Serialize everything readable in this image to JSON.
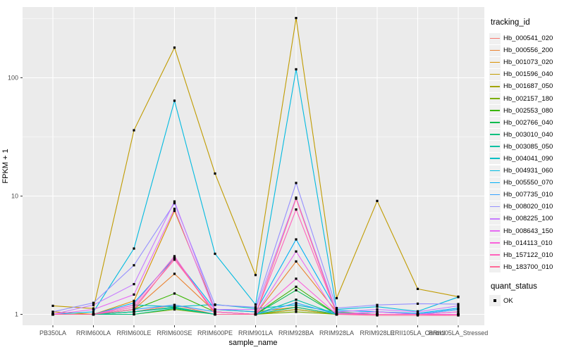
{
  "figure": {
    "panel_bg": "#EBEBEB",
    "grid_color": "#FFFFFF",
    "tick_color": "#333333",
    "axis_text_color": "#4D4D4D",
    "point_color": "#000000"
  },
  "chart_data": {
    "type": "line",
    "title": "",
    "xlabel": "sample_name",
    "ylabel": "FPKM + 1",
    "y_scale": "log10",
    "ylim": [
      0.8,
      400
    ],
    "y_ticks": [
      1,
      10,
      100
    ],
    "y_tick_labels": [
      "1",
      "10",
      "100"
    ],
    "y_minor_breaks": [
      3.162,
      31.62,
      316.2
    ],
    "grid": "on",
    "legend_position": "right",
    "point_shape": "square",
    "categories": [
      "PB350LA",
      "RRIM600LA",
      "RRIM600LE",
      "RRIM600SE",
      "RRIM600PE",
      "RRIM901LA",
      "RRIM928BA",
      "RRIM928LA",
      "RRIM928LE",
      "RRII105LA_Control",
      "RRII105LA_Stressed"
    ],
    "series": [
      {
        "name": "Hb_000541_020",
        "color": "#F8766D",
        "values": [
          1.0,
          1.0,
          1.05,
          1.2,
          1.0,
          1.0,
          1.1,
          1.0,
          1.0,
          1.0,
          1.0
        ]
      },
      {
        "name": "Hb_000556_200",
        "color": "#EA8331",
        "values": [
          1.0,
          1.0,
          1.1,
          2.2,
          1.05,
          1.0,
          2.8,
          1.05,
          1.0,
          1.0,
          1.05
        ]
      },
      {
        "name": "Hb_001073_020",
        "color": "#D89000",
        "values": [
          1.05,
          1.0,
          1.3,
          7.5,
          1.1,
          1.05,
          1.15,
          1.0,
          1.0,
          1.0,
          1.0
        ]
      },
      {
        "name": "Hb_001596_040",
        "color": "#C09B00",
        "values": [
          1.18,
          1.12,
          36.0,
          180.0,
          15.5,
          2.15,
          320.0,
          1.37,
          9.1,
          1.64,
          1.41
        ]
      },
      {
        "name": "Hb_001687_050",
        "color": "#A3A500",
        "values": [
          1.0,
          1.0,
          1.05,
          1.15,
          1.0,
          1.0,
          1.1,
          1.0,
          1.0,
          1.0,
          1.0
        ]
      },
      {
        "name": "Hb_002157_180",
        "color": "#7CAE00",
        "values": [
          1.0,
          1.0,
          1.0,
          1.1,
          1.0,
          1.0,
          1.05,
          1.0,
          1.0,
          1.0,
          1.0
        ]
      },
      {
        "name": "Hb_002553_080",
        "color": "#39B600",
        "values": [
          1.0,
          1.0,
          1.1,
          1.5,
          1.05,
          1.0,
          1.71,
          1.0,
          1.0,
          1.0,
          1.0
        ]
      },
      {
        "name": "Hb_002766_040",
        "color": "#00BB4E",
        "values": [
          1.0,
          1.0,
          1.05,
          1.15,
          1.0,
          1.0,
          1.6,
          1.0,
          1.0,
          1.0,
          1.0
        ]
      },
      {
        "name": "Hb_003010_040",
        "color": "#00BF7D",
        "values": [
          1.0,
          1.0,
          1.0,
          1.12,
          1.0,
          1.0,
          1.15,
          1.0,
          1.0,
          1.0,
          1.0
        ]
      },
      {
        "name": "Hb_003085_050",
        "color": "#00C1A3",
        "values": [
          1.0,
          1.0,
          1.05,
          1.14,
          1.0,
          1.0,
          1.33,
          1.0,
          1.0,
          1.0,
          1.0
        ]
      },
      {
        "name": "Hb_004041_090",
        "color": "#00BFC4",
        "values": [
          1.0,
          1.0,
          1.2,
          1.16,
          1.21,
          1.12,
          1.2,
          1.04,
          1.0,
          1.0,
          1.1
        ]
      },
      {
        "name": "Hb_004931_060",
        "color": "#00BAE0",
        "values": [
          1.0,
          1.05,
          3.6,
          64.0,
          3.25,
          1.21,
          118.0,
          1.1,
          1.16,
          1.06,
          1.4
        ]
      },
      {
        "name": "Hb_005550_070",
        "color": "#00B0F6",
        "values": [
          1.0,
          1.0,
          1.25,
          3.0,
          1.1,
          1.05,
          4.3,
          1.08,
          1.05,
          1.02,
          1.13
        ]
      },
      {
        "name": "Hb_007735_010",
        "color": "#35A2FF",
        "values": [
          1.0,
          1.0,
          1.1,
          1.2,
          1.05,
          1.0,
          1.25,
          1.0,
          1.05,
          1.0,
          1.1
        ]
      },
      {
        "name": "Hb_008020_010",
        "color": "#9590FF",
        "values": [
          1.05,
          1.25,
          2.6,
          8.7,
          1.2,
          1.15,
          12.9,
          1.13,
          1.2,
          1.23,
          1.22
        ]
      },
      {
        "name": "Hb_008225_100",
        "color": "#C77CFF",
        "values": [
          1.0,
          1.2,
          1.8,
          9.0,
          1.1,
          1.1,
          9.7,
          1.05,
          1.1,
          1.05,
          1.18
        ]
      },
      {
        "name": "Hb_008643_150",
        "color": "#E76BF3",
        "values": [
          1.0,
          1.1,
          1.47,
          7.8,
          1.05,
          1.0,
          3.4,
          1.0,
          1.05,
          1.0,
          1.05
        ]
      },
      {
        "name": "Hb_014113_010",
        "color": "#FA62DB",
        "values": [
          1.0,
          1.0,
          1.2,
          3.1,
          1.0,
          1.0,
          2.0,
          1.0,
          1.0,
          1.0,
          1.0
        ]
      },
      {
        "name": "Hb_157122_010",
        "color": "#FF62BC",
        "values": [
          1.0,
          1.0,
          1.15,
          2.9,
          1.05,
          1.0,
          7.7,
          1.02,
          1.0,
          1.0,
          0.98
        ]
      },
      {
        "name": "Hb_183700_010",
        "color": "#FF6A98",
        "values": [
          1.0,
          1.0,
          1.1,
          3.0,
          1.0,
          1.0,
          9.5,
          1.0,
          0.98,
          0.98,
          0.98
        ]
      }
    ]
  },
  "legend": {
    "tracking_title": "tracking_id",
    "quant_title": "quant_status",
    "quant_items": [
      {
        "label": "OK"
      }
    ]
  }
}
